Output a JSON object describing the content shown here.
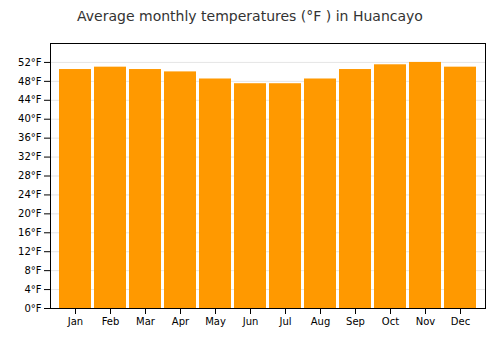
{
  "chart_data": {
    "type": "bar",
    "title": "Average monthly temperatures (°F ) in Huancayo",
    "categories": [
      "Jan",
      "Feb",
      "Mar",
      "Apr",
      "May",
      "Jun",
      "Jul",
      "Aug",
      "Sep",
      "Oct",
      "Nov",
      "Dec"
    ],
    "values": [
      50.5,
      51.0,
      50.5,
      50.0,
      48.5,
      47.5,
      47.5,
      48.5,
      50.5,
      51.5,
      52.0,
      51.0
    ],
    "color": "#FF9900",
    "ylim": [
      0,
      56
    ],
    "yticks": [
      {
        "value": 0,
        "label": "0°F"
      },
      {
        "value": 4,
        "label": "4°F"
      },
      {
        "value": 8,
        "label": "8°F"
      },
      {
        "value": 12,
        "label": "12°F"
      },
      {
        "value": 16,
        "label": "16°F"
      },
      {
        "value": 20,
        "label": "20°F"
      },
      {
        "value": 24,
        "label": "24°F"
      },
      {
        "value": 28,
        "label": "28°F"
      },
      {
        "value": 32,
        "label": "32°F"
      },
      {
        "value": 36,
        "label": "36°F"
      },
      {
        "value": 40,
        "label": "40°F"
      },
      {
        "value": 44,
        "label": "44°F"
      },
      {
        "value": 48,
        "label": "48°F"
      },
      {
        "value": 52,
        "label": "52°F"
      }
    ],
    "grid": true
  }
}
